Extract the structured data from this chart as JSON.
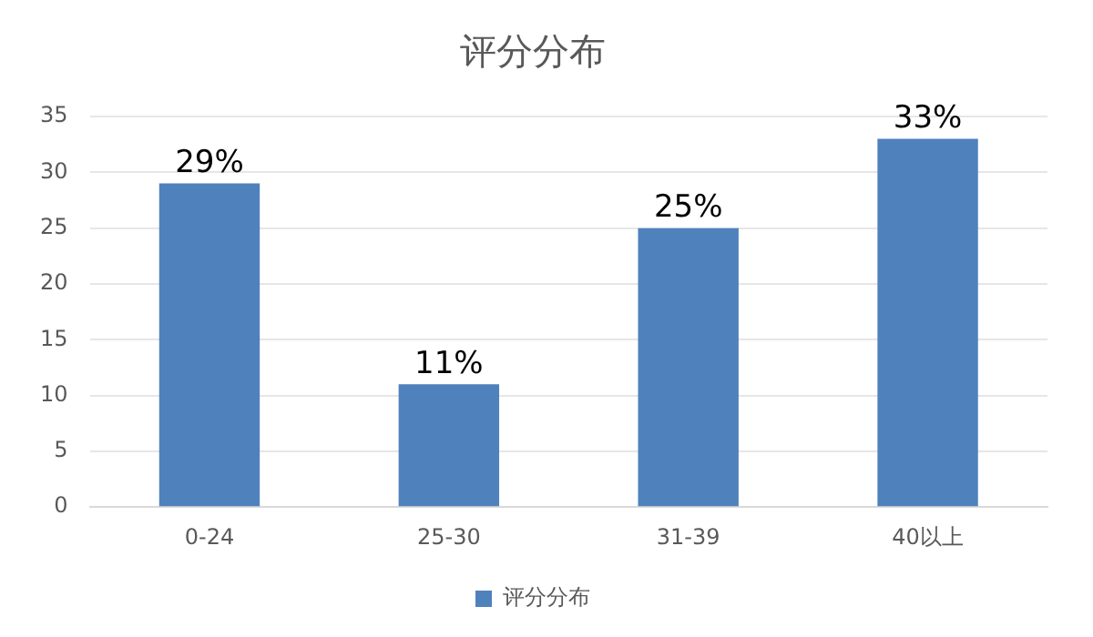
{
  "chart_data": {
    "type": "bar",
    "title": "评分分布",
    "categories": [
      "0-24",
      "25-30",
      "31-39",
      "40以上"
    ],
    "series": [
      {
        "name": "评分分布",
        "color": "#4f81bd",
        "values": [
          29,
          11,
          25,
          33
        ],
        "value_labels": [
          "29%",
          "11%",
          "25%",
          "33%"
        ]
      }
    ],
    "ylim": [
      0,
      35
    ],
    "yticks": [
      0,
      5,
      10,
      15,
      20,
      25,
      30,
      35
    ],
    "grid": "y",
    "legend": "bottom"
  }
}
